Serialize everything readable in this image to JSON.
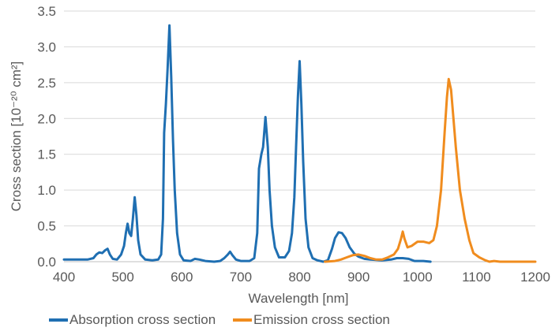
{
  "chart_data": {
    "type": "line",
    "title": "",
    "xlabel": "Wavelength [nm]",
    "ylabel": "Cross section [10⁻²⁰ cm²]",
    "xlim": [
      400,
      1200
    ],
    "ylim": [
      0,
      3.5
    ],
    "x_ticks": [
      400,
      500,
      600,
      700,
      800,
      900,
      1000,
      1100,
      1200
    ],
    "y_ticks": [
      0,
      0.5,
      1,
      1.5,
      2,
      2.5,
      3,
      3.5
    ],
    "x_tick_labels": [
      "400",
      "500",
      "600",
      "700",
      "800",
      "900",
      "1000",
      "1100",
      "1200"
    ],
    "y_tick_labels": [
      "0.0",
      "0.5",
      "1.0",
      "1.5",
      "2.0",
      "2.5",
      "3.0",
      "3.5"
    ],
    "grid": "horizontal",
    "legend_position": "bottom",
    "series": [
      {
        "name": "Absorption cross section",
        "color": "#1f6fb2",
        "points": [
          [
            400,
            0.03
          ],
          [
            420,
            0.03
          ],
          [
            440,
            0.03
          ],
          [
            450,
            0.05
          ],
          [
            455,
            0.1
          ],
          [
            460,
            0.13
          ],
          [
            465,
            0.12
          ],
          [
            470,
            0.16
          ],
          [
            474,
            0.18
          ],
          [
            478,
            0.1
          ],
          [
            483,
            0.04
          ],
          [
            490,
            0.03
          ],
          [
            497,
            0.1
          ],
          [
            502,
            0.22
          ],
          [
            505,
            0.4
          ],
          [
            508,
            0.53
          ],
          [
            511,
            0.4
          ],
          [
            514,
            0.36
          ],
          [
            517,
            0.6
          ],
          [
            520,
            0.9
          ],
          [
            523,
            0.65
          ],
          [
            526,
            0.3
          ],
          [
            530,
            0.1
          ],
          [
            538,
            0.03
          ],
          [
            550,
            0.02
          ],
          [
            560,
            0.03
          ],
          [
            565,
            0.1
          ],
          [
            568,
            0.6
          ],
          [
            570,
            1.8
          ],
          [
            573,
            2.2
          ],
          [
            576,
            2.7
          ],
          [
            579,
            3.3
          ],
          [
            582,
            2.6
          ],
          [
            585,
            1.7
          ],
          [
            588,
            1.0
          ],
          [
            592,
            0.4
          ],
          [
            597,
            0.1
          ],
          [
            603,
            0.02
          ],
          [
            615,
            0.01
          ],
          [
            622,
            0.04
          ],
          [
            630,
            0.03
          ],
          [
            640,
            0.01
          ],
          [
            655,
            0.0
          ],
          [
            665,
            0.01
          ],
          [
            672,
            0.05
          ],
          [
            678,
            0.1
          ],
          [
            682,
            0.14
          ],
          [
            686,
            0.09
          ],
          [
            692,
            0.03
          ],
          [
            700,
            0.01
          ],
          [
            715,
            0.01
          ],
          [
            723,
            0.05
          ],
          [
            728,
            0.4
          ],
          [
            731,
            1.3
          ],
          [
            735,
            1.5
          ],
          [
            738,
            1.6
          ],
          [
            742,
            2.02
          ],
          [
            746,
            1.6
          ],
          [
            749,
            1.0
          ],
          [
            753,
            0.5
          ],
          [
            758,
            0.2
          ],
          [
            765,
            0.06
          ],
          [
            775,
            0.06
          ],
          [
            782,
            0.15
          ],
          [
            787,
            0.4
          ],
          [
            791,
            0.9
          ],
          [
            794,
            1.6
          ],
          [
            797,
            2.3
          ],
          [
            800,
            2.8
          ],
          [
            803,
            2.2
          ],
          [
            806,
            1.4
          ],
          [
            810,
            0.6
          ],
          [
            815,
            0.2
          ],
          [
            822,
            0.05
          ],
          [
            830,
            0.02
          ],
          [
            840,
            0.0
          ],
          [
            848,
            0.02
          ],
          [
            855,
            0.18
          ],
          [
            860,
            0.33
          ],
          [
            866,
            0.41
          ],
          [
            872,
            0.4
          ],
          [
            878,
            0.33
          ],
          [
            885,
            0.2
          ],
          [
            893,
            0.11
          ],
          [
            900,
            0.07
          ],
          [
            910,
            0.04
          ],
          [
            920,
            0.03
          ],
          [
            940,
            0.02
          ],
          [
            955,
            0.03
          ],
          [
            965,
            0.05
          ],
          [
            975,
            0.05
          ],
          [
            985,
            0.04
          ],
          [
            995,
            0.01
          ],
          [
            1010,
            0.01
          ],
          [
            1022,
            0.0
          ]
        ]
      },
      {
        "name": "Emission cross section",
        "color": "#f08c1e",
        "points": [
          [
            843,
            0.0
          ],
          [
            860,
            0.01
          ],
          [
            870,
            0.03
          ],
          [
            880,
            0.06
          ],
          [
            890,
            0.09
          ],
          [
            900,
            0.1
          ],
          [
            910,
            0.08
          ],
          [
            920,
            0.05
          ],
          [
            930,
            0.03
          ],
          [
            940,
            0.03
          ],
          [
            950,
            0.06
          ],
          [
            960,
            0.1
          ],
          [
            967,
            0.18
          ],
          [
            972,
            0.32
          ],
          [
            975,
            0.42
          ],
          [
            978,
            0.32
          ],
          [
            983,
            0.2
          ],
          [
            990,
            0.22
          ],
          [
            1000,
            0.28
          ],
          [
            1010,
            0.28
          ],
          [
            1020,
            0.26
          ],
          [
            1027,
            0.3
          ],
          [
            1033,
            0.5
          ],
          [
            1040,
            1.0
          ],
          [
            1046,
            1.8
          ],
          [
            1050,
            2.3
          ],
          [
            1053,
            2.55
          ],
          [
            1057,
            2.4
          ],
          [
            1061,
            2.0
          ],
          [
            1065,
            1.6
          ],
          [
            1072,
            1.0
          ],
          [
            1080,
            0.6
          ],
          [
            1088,
            0.3
          ],
          [
            1095,
            0.12
          ],
          [
            1105,
            0.06
          ],
          [
            1115,
            0.02
          ],
          [
            1122,
            0.0
          ],
          [
            1130,
            0.01
          ],
          [
            1140,
            0.0
          ],
          [
            1160,
            0.0
          ],
          [
            1180,
            0.0
          ],
          [
            1200,
            0.0
          ]
        ]
      }
    ]
  }
}
